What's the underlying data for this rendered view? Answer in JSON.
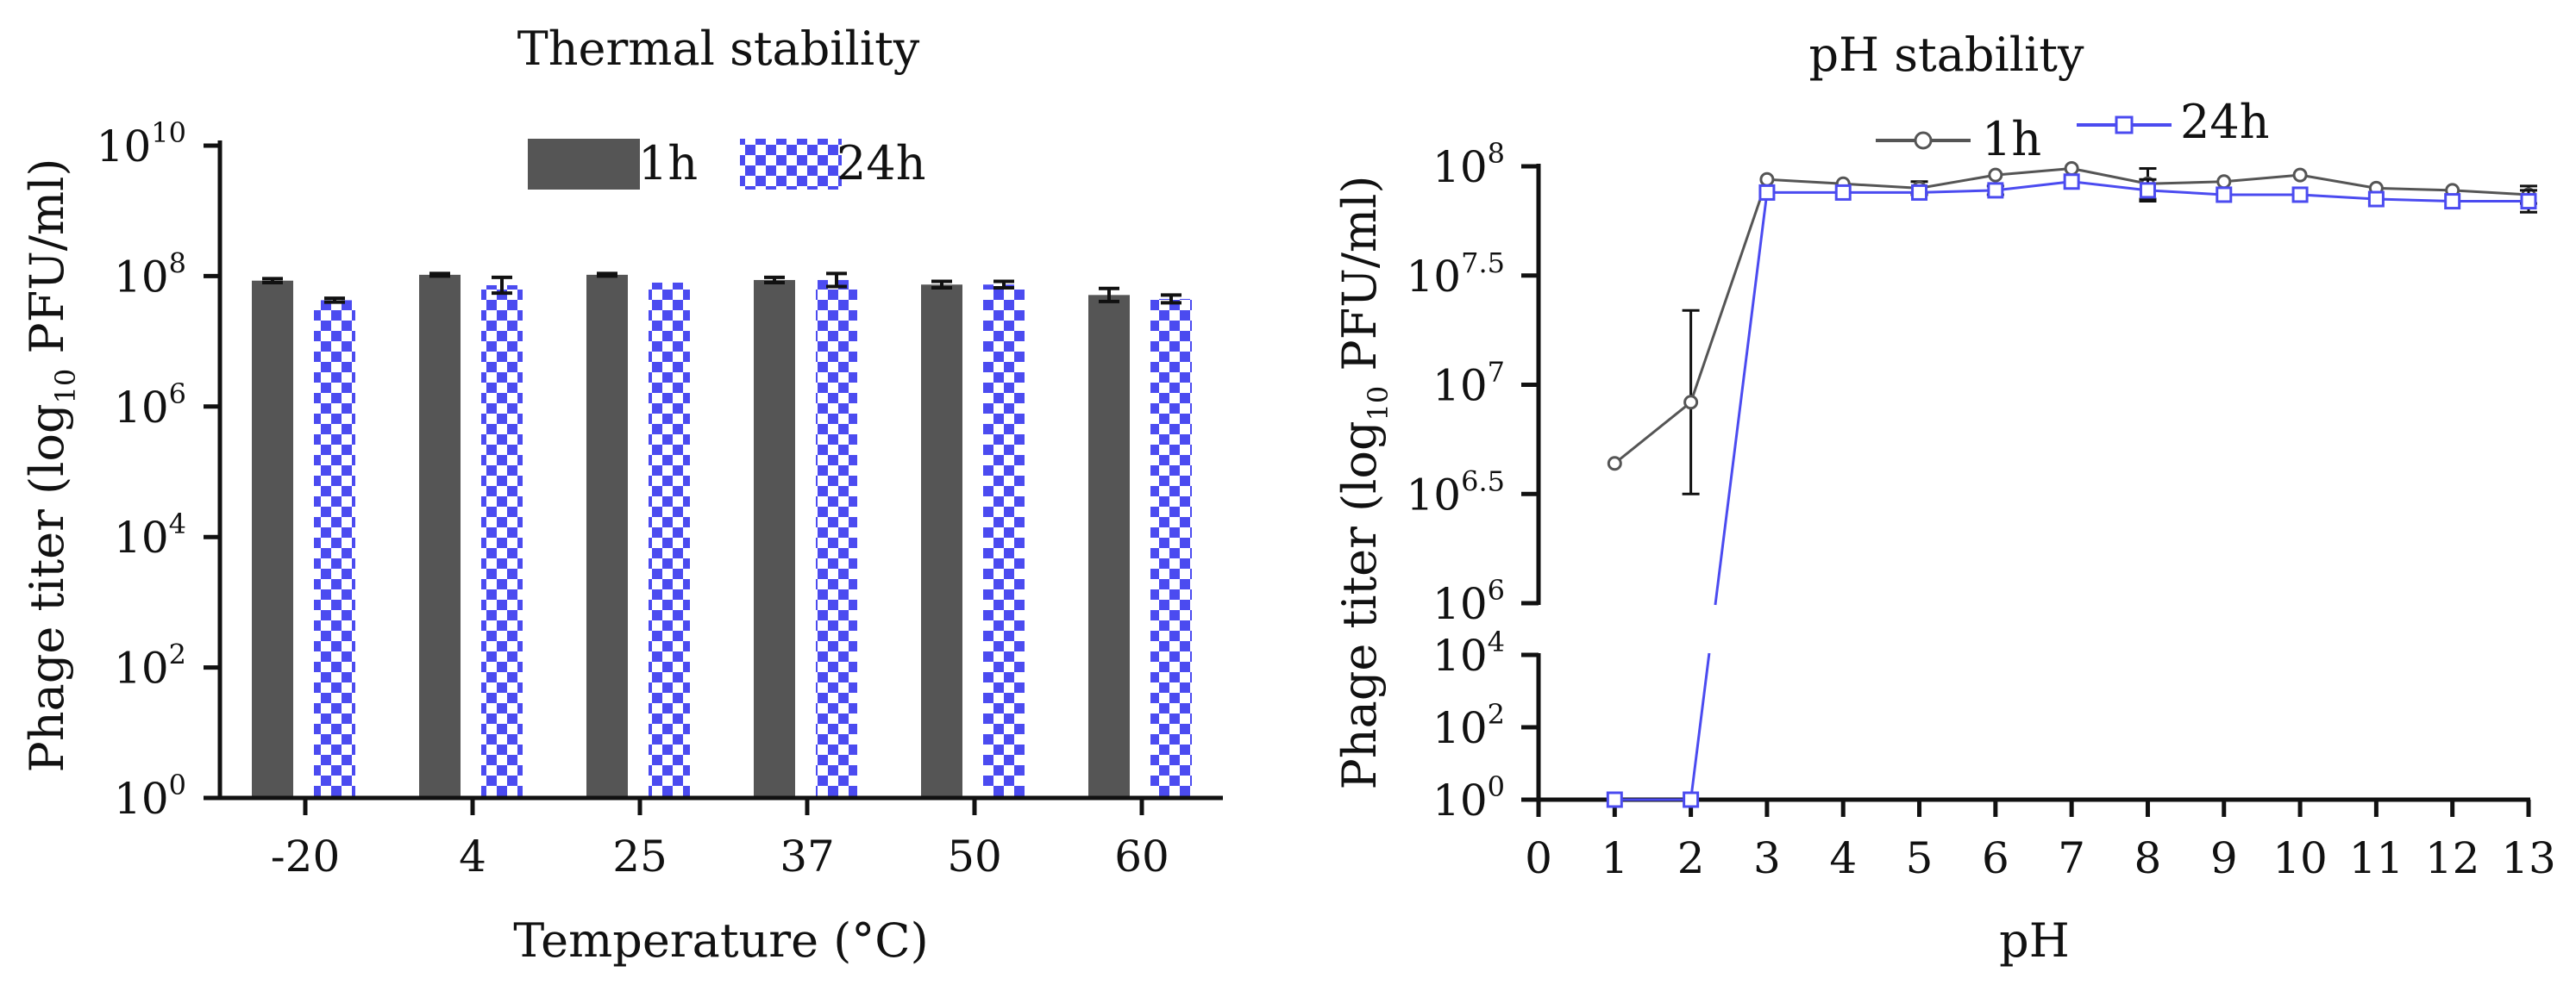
{
  "colors": {
    "h1": "#555555",
    "h24": "#4b4bf0",
    "axis": "#111111"
  },
  "chart_data": [
    {
      "type": "bar",
      "title": "Thermal stability",
      "xlabel": "Temperature (°C)",
      "ylabel_prefix": "Phage titer (log",
      "ylabel_sub": "10",
      "ylabel_suffix": " PFU/ml)",
      "yscale": "log10",
      "ylim": [
        0,
        10
      ],
      "yticks": [
        {
          "base": "10",
          "exp": "0",
          "v": 0
        },
        {
          "base": "10",
          "exp": "2",
          "v": 2
        },
        {
          "base": "10",
          "exp": "4",
          "v": 4
        },
        {
          "base": "10",
          "exp": "6",
          "v": 6
        },
        {
          "base": "10",
          "exp": "8",
          "v": 8
        },
        {
          "base": "10",
          "exp": "10",
          "v": 10
        }
      ],
      "categories": [
        "-20",
        "4",
        "25",
        "37",
        "50",
        "60"
      ],
      "legend_position": "top",
      "series": [
        {
          "name": "1h",
          "pattern": "solid",
          "values": [
            7.93,
            8.02,
            8.02,
            7.94,
            7.87,
            7.71
          ],
          "errors": [
            0.03,
            0.02,
            0.02,
            0.04,
            0.05,
            0.1
          ]
        },
        {
          "name": "24h",
          "pattern": "checkered",
          "values": [
            7.63,
            7.86,
            7.9,
            7.94,
            7.87,
            7.65
          ],
          "errors": [
            0.03,
            0.12,
            0.0,
            0.1,
            0.05,
            0.06
          ]
        }
      ]
    },
    {
      "type": "line",
      "title": "pH stability",
      "xlabel": "pH",
      "ylabel_prefix": "Phage titer (log",
      "ylabel_sub": "10",
      "ylabel_suffix": " PFU/ml)",
      "xlim": [
        0,
        13
      ],
      "xticks": [
        "0",
        "1",
        "2",
        "3",
        "4",
        "5",
        "6",
        "7",
        "8",
        "9",
        "10",
        "11",
        "12",
        "13"
      ],
      "broken_axis": {
        "upper_range": [
          6,
          8
        ],
        "lower_range": [
          0,
          4
        ]
      },
      "upper_yticks": [
        {
          "base": "10",
          "exp": "6",
          "v": 6
        },
        {
          "base": "10",
          "exp": "6.5",
          "v": 6.5
        },
        {
          "base": "10",
          "exp": "7",
          "v": 7
        },
        {
          "base": "10",
          "exp": "7.5",
          "v": 7.5
        },
        {
          "base": "10",
          "exp": "8",
          "v": 8
        }
      ],
      "lower_yticks": [
        {
          "base": "10",
          "exp": "0",
          "v": 0
        },
        {
          "base": "10",
          "exp": "2",
          "v": 2
        },
        {
          "base": "10",
          "exp": "4",
          "v": 4
        }
      ],
      "legend_position": "top",
      "series": [
        {
          "name": "1h",
          "marker": "circle",
          "x": [
            1,
            2,
            3,
            4,
            5,
            6,
            7,
            8,
            9,
            10,
            11,
            12,
            13
          ],
          "values": [
            6.64,
            6.92,
            7.94,
            7.92,
            7.9,
            7.96,
            7.99,
            7.92,
            7.93,
            7.96,
            7.9,
            7.89,
            7.87
          ],
          "errors": [
            0,
            0.42,
            0,
            0,
            0.03,
            0,
            0,
            0.07,
            0,
            0,
            0,
            0,
            0.04
          ]
        },
        {
          "name": "24h",
          "marker": "square",
          "x": [
            1,
            2,
            3,
            4,
            5,
            6,
            7,
            8,
            9,
            10,
            11,
            12,
            13
          ],
          "values": [
            0,
            0,
            7.88,
            7.88,
            7.88,
            7.89,
            7.93,
            7.89,
            7.87,
            7.87,
            7.85,
            7.84,
            7.84
          ],
          "errors": [
            0,
            0,
            0,
            0,
            0,
            0.02,
            0,
            0.05,
            0,
            0,
            0,
            0,
            0.05
          ]
        }
      ]
    }
  ]
}
